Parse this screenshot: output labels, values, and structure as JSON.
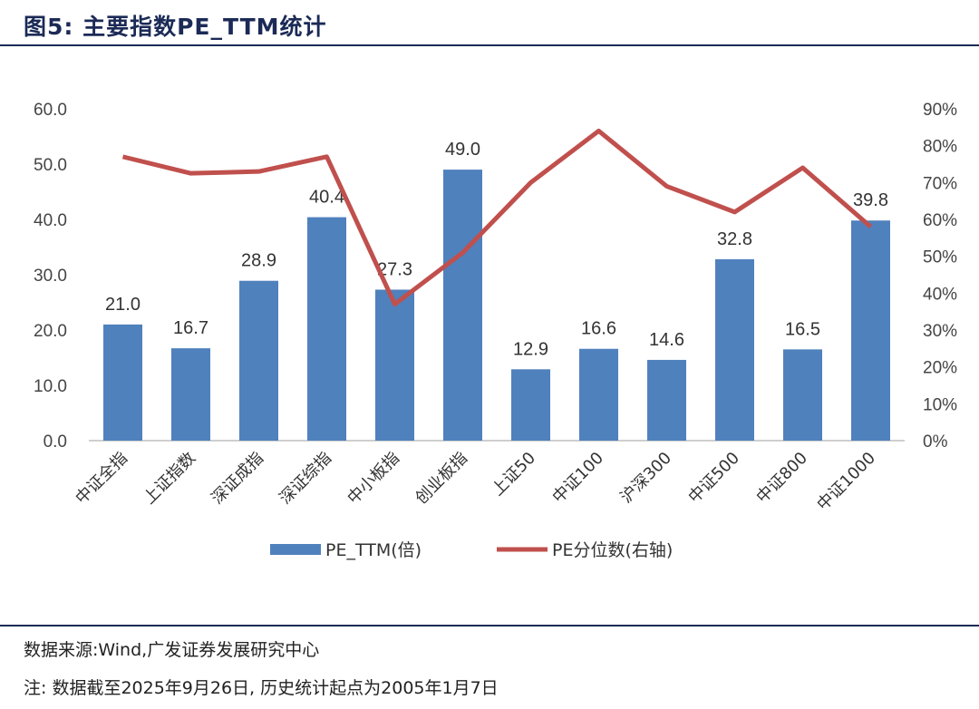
{
  "header": {
    "title": "图5: 主要指数PE_TTM统计"
  },
  "footer": {
    "source": "数据来源:Wind,广发证券发展研究中心",
    "note": "注: 数据截至2025年9月26日, 历史统计起点为2005年1月7日"
  },
  "colors": {
    "bar": "#4f81bd",
    "line": "#c0504d",
    "axis": "#bfbfbf",
    "rule": "#1b2a56"
  },
  "chart_data": {
    "type": "bar",
    "title": "主要指数PE_TTM统计",
    "categories": [
      "中证全指",
      "上证指数",
      "深证成指",
      "深证综指",
      "中小板指",
      "创业板指",
      "上证50",
      "中证100",
      "沪深300",
      "中证500",
      "中证800",
      "中证1000"
    ],
    "series": [
      {
        "name": "PE_TTM(倍)",
        "type": "bar",
        "axis": "left",
        "values": [
          21.0,
          16.7,
          28.9,
          40.4,
          27.3,
          49.0,
          12.9,
          16.6,
          14.6,
          32.8,
          16.5,
          39.8
        ]
      },
      {
        "name": "PE分位数(右轴)",
        "type": "line",
        "axis": "right",
        "values": [
          77,
          72.5,
          73,
          77,
          37,
          51,
          70,
          84,
          69,
          62,
          74,
          58
        ]
      }
    ],
    "y_left": {
      "range": [
        0,
        60
      ],
      "ticks": [
        "0.0",
        "10.0",
        "20.0",
        "30.0",
        "40.0",
        "50.0",
        "60.0"
      ]
    },
    "y_right": {
      "range": [
        0,
        90
      ],
      "ticks": [
        "0%",
        "10%",
        "20%",
        "30%",
        "40%",
        "50%",
        "60%",
        "70%",
        "80%",
        "90%"
      ]
    },
    "data_labels": [
      "21.0",
      "16.7",
      "28.9",
      "40.4",
      "27.3",
      "49.0",
      "12.9",
      "16.6",
      "14.6",
      "32.8",
      "16.5",
      "39.8"
    ],
    "legend_position": "bottom",
    "grid": false
  }
}
